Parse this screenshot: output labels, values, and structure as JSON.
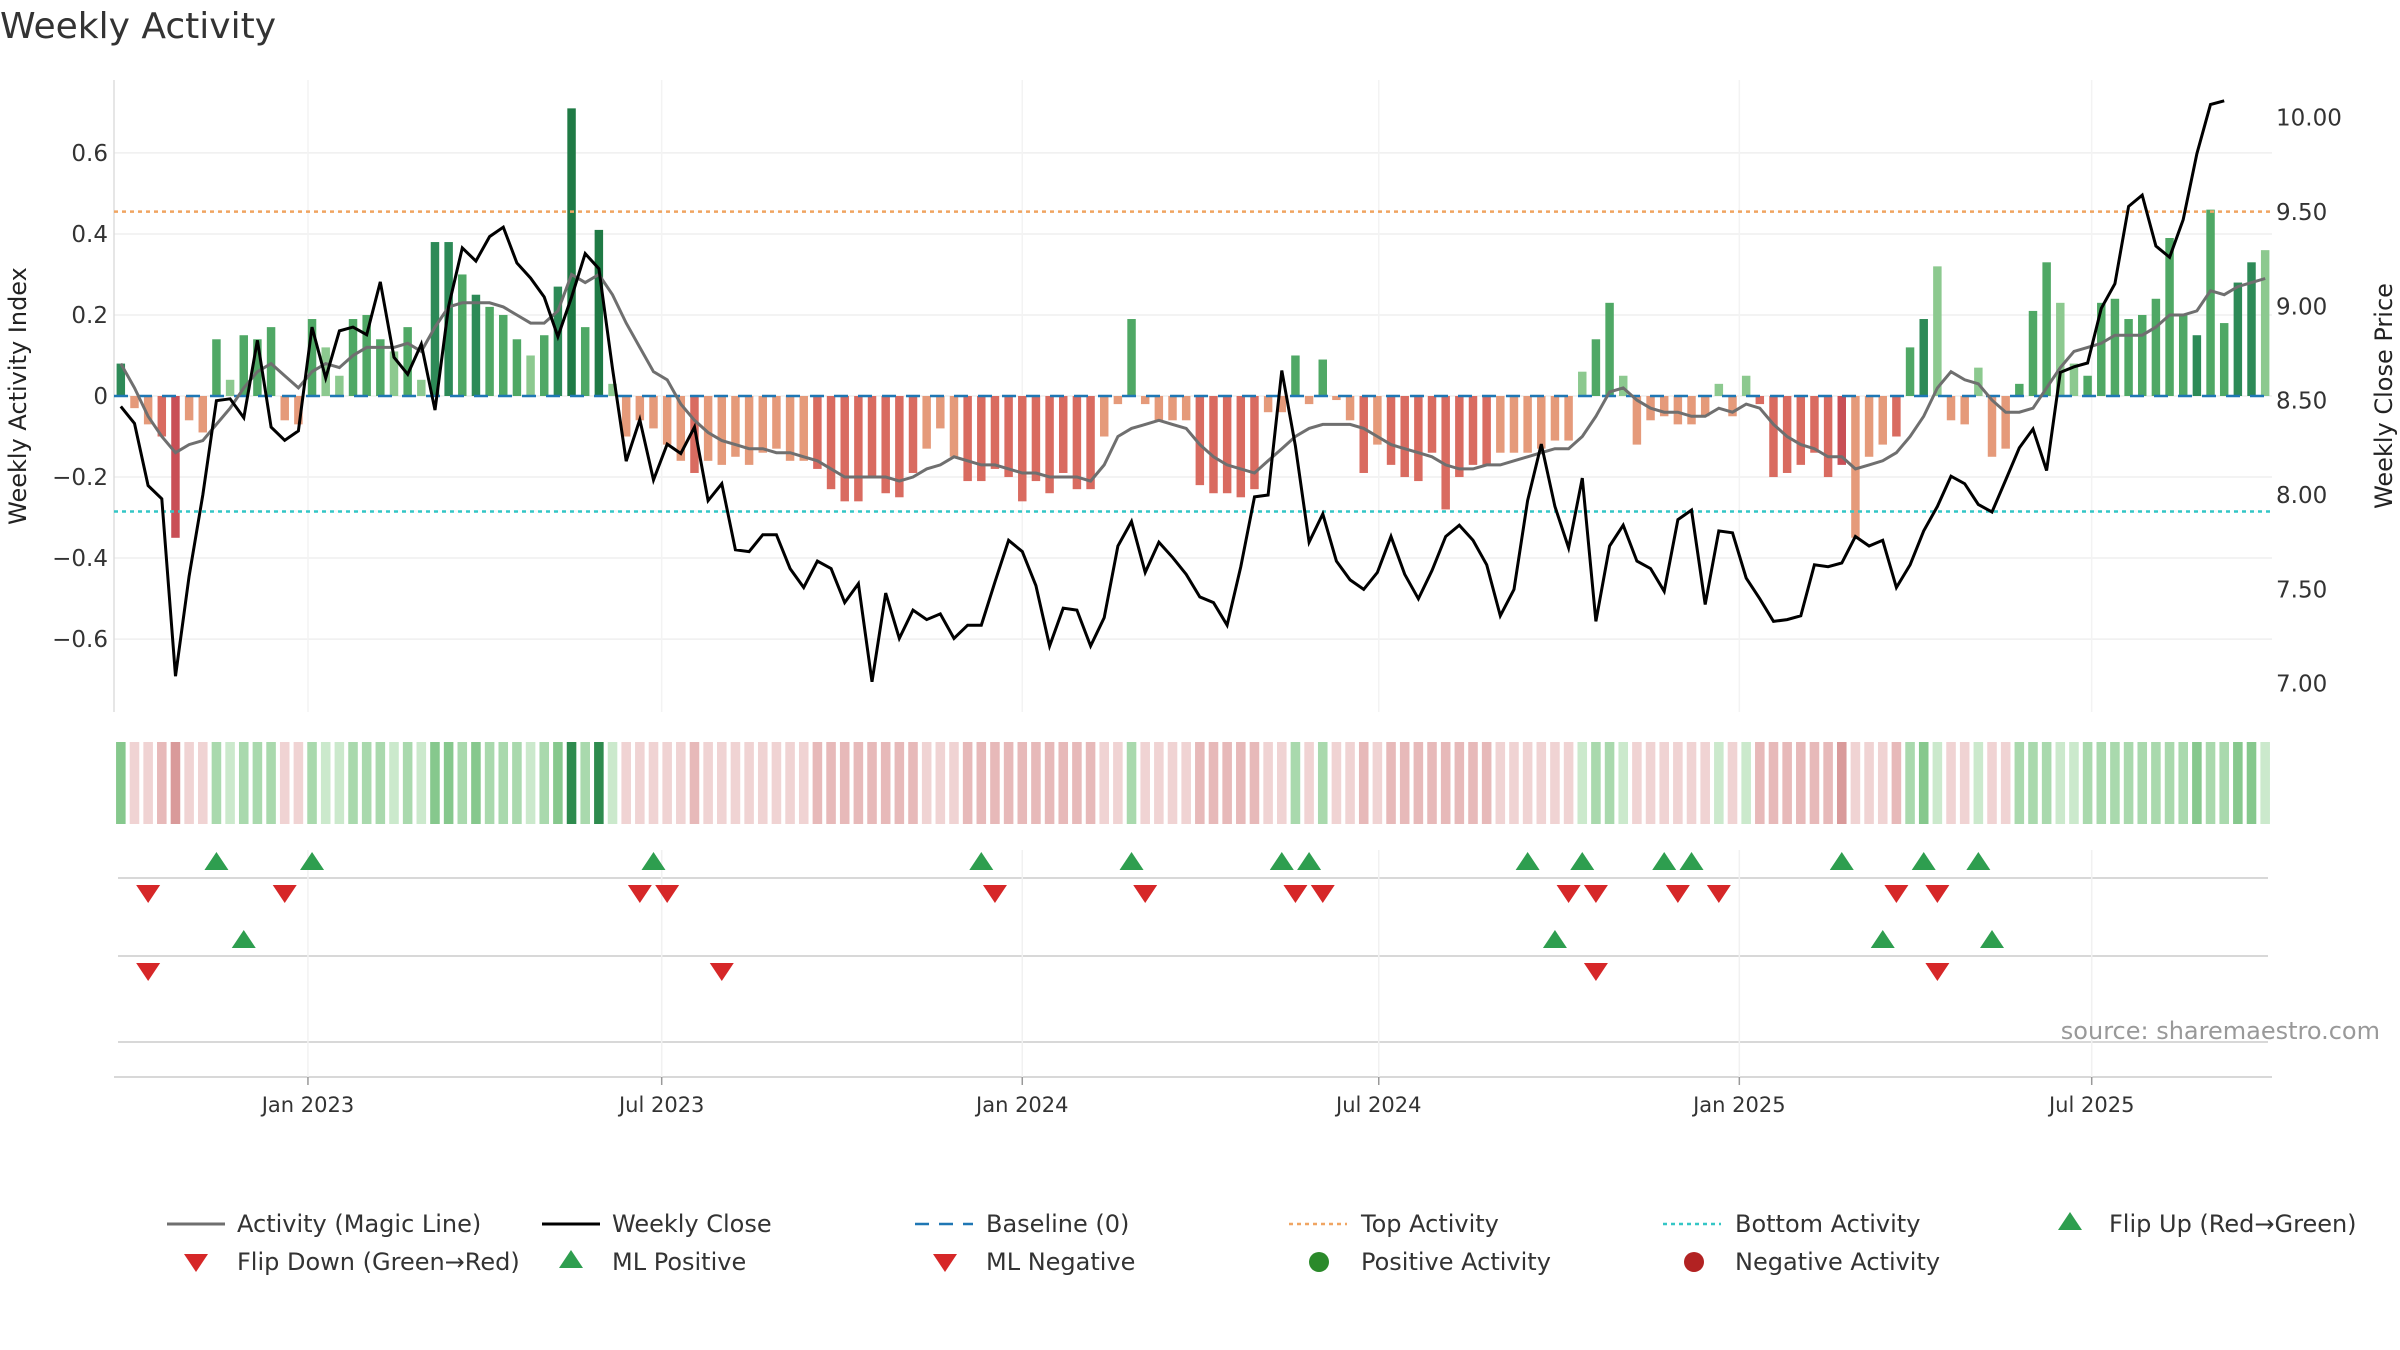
{
  "chart_data": {
    "type": "bar",
    "title": "Weekly Activity",
    "ylabel_left": "Weekly Activity Index",
    "ylabel_right": "Weekly Close Price",
    "ylim_left": [
      -0.78,
      0.78
    ],
    "ylim_right": [
      6.85,
      10.2
    ],
    "left_ticks": [
      0.6,
      0.4,
      0.2,
      0,
      -0.2,
      -0.4,
      -0.6
    ],
    "left_tick_labels": [
      "0.6",
      "0.4",
      "0.2",
      "0",
      "−0.2",
      "−0.4",
      "−0.6"
    ],
    "right_ticks": [
      10.0,
      9.5,
      9.0,
      8.5,
      8.0,
      7.5,
      7.0
    ],
    "right_tick_labels": [
      "10.00",
      "9.50",
      "9.00",
      "8.50",
      "8.00",
      "7.50",
      "7.00"
    ],
    "x_week_range": [
      0,
      158
    ],
    "x_ticks": [
      {
        "label": "Jan 2023",
        "week": 14.2
      },
      {
        "label": "Jul 2023",
        "week": 40.1
      },
      {
        "label": "Jan 2024",
        "week": 66.5
      },
      {
        "label": "Jul 2024",
        "week": 92.6
      },
      {
        "label": "Jan 2025",
        "week": 119
      },
      {
        "label": "Jul 2025",
        "week": 144.8
      }
    ],
    "top_activity": 0.455,
    "bottom_activity": -0.285,
    "baseline": 0,
    "activity": [
      0.08,
      -0.03,
      -0.07,
      -0.1,
      -0.35,
      -0.06,
      -0.09,
      0.14,
      0.04,
      0.15,
      0.14,
      0.17,
      -0.06,
      -0.07,
      0.19,
      0.12,
      0.05,
      0.19,
      0.2,
      0.14,
      0.11,
      0.17,
      0.04,
      0.38,
      0.38,
      0.3,
      0.25,
      0.22,
      0.2,
      0.14,
      0.1,
      0.15,
      0.27,
      0.71,
      0.17,
      0.41,
      0.03,
      -0.1,
      -0.06,
      -0.08,
      -0.12,
      -0.16,
      -0.19,
      -0.16,
      -0.17,
      -0.15,
      -0.17,
      -0.14,
      -0.13,
      -0.16,
      -0.16,
      -0.18,
      -0.23,
      -0.26,
      -0.26,
      -0.2,
      -0.24,
      -0.25,
      -0.19,
      -0.13,
      -0.08,
      -0.15,
      -0.21,
      -0.21,
      -0.18,
      -0.2,
      -0.26,
      -0.21,
      -0.24,
      -0.19,
      -0.23,
      -0.23,
      -0.1,
      -0.02,
      0.19,
      -0.02,
      -0.06,
      -0.06,
      -0.06,
      -0.22,
      -0.24,
      -0.24,
      -0.25,
      -0.23,
      -0.04,
      -0.04,
      0.1,
      -0.02,
      0.09,
      -0.01,
      -0.06,
      -0.19,
      -0.12,
      -0.17,
      -0.2,
      -0.21,
      -0.14,
      -0.28,
      -0.2,
      -0.17,
      -0.17,
      -0.14,
      -0.14,
      -0.14,
      -0.13,
      -0.11,
      -0.11,
      0.06,
      0.14,
      0.23,
      0.05,
      -0.12,
      -0.06,
      -0.05,
      -0.07,
      -0.07,
      -0.05,
      0.03,
      -0.05,
      0.05,
      -0.02,
      -0.2,
      -0.19,
      -0.17,
      -0.14,
      -0.2,
      -0.17,
      -0.35,
      -0.15,
      -0.12,
      -0.1,
      0.12,
      0.19,
      0.32,
      -0.06,
      -0.07,
      0.07,
      -0.15,
      -0.13,
      0.03,
      0.21,
      0.33,
      0.23,
      0.08,
      0.05,
      0.23,
      0.24,
      0.19,
      0.2,
      0.24,
      0.39,
      0.2,
      0.15,
      0.46,
      0.18,
      0.28,
      0.33,
      0.36
    ],
    "activity_strength": [
      3,
      1,
      1,
      2,
      3,
      1,
      1,
      2,
      1,
      2,
      2,
      2,
      1,
      1,
      2,
      1,
      1,
      2,
      2,
      2,
      1,
      2,
      1,
      3,
      3,
      2,
      3,
      2,
      2,
      2,
      1,
      2,
      3,
      4,
      2,
      4,
      1,
      1,
      1,
      1,
      1,
      1,
      2,
      1,
      1,
      1,
      1,
      1,
      1,
      1,
      1,
      2,
      2,
      2,
      2,
      2,
      2,
      2,
      2,
      1,
      1,
      1,
      2,
      2,
      2,
      2,
      2,
      2,
      2,
      2,
      2,
      2,
      1,
      1,
      2,
      1,
      1,
      1,
      1,
      2,
      2,
      2,
      2,
      2,
      1,
      1,
      2,
      1,
      2,
      1,
      1,
      2,
      1,
      2,
      2,
      2,
      2,
      2,
      2,
      2,
      2,
      1,
      1,
      1,
      1,
      1,
      1,
      1,
      2,
      2,
      1,
      1,
      1,
      1,
      1,
      1,
      1,
      1,
      1,
      1,
      2,
      2,
      2,
      2,
      2,
      2,
      3,
      1,
      1,
      1,
      2,
      2,
      3,
      1,
      1,
      1,
      1,
      1,
      1,
      2,
      2,
      2,
      1,
      1,
      2,
      2,
      2,
      2,
      2,
      2,
      2,
      2,
      3,
      2,
      2,
      3,
      3
    ],
    "magic_line": [
      0.08,
      0.02,
      -0.05,
      -0.1,
      -0.14,
      -0.12,
      -0.11,
      -0.07,
      -0.03,
      0.02,
      0.06,
      0.08,
      0.05,
      0.02,
      0.06,
      0.08,
      0.07,
      0.1,
      0.12,
      0.12,
      0.12,
      0.13,
      0.11,
      0.17,
      0.22,
      0.23,
      0.23,
      0.23,
      0.22,
      0.2,
      0.18,
      0.18,
      0.21,
      0.3,
      0.28,
      0.3,
      0.25,
      0.18,
      0.12,
      0.06,
      0.04,
      -0.02,
      -0.06,
      -0.09,
      -0.11,
      -0.12,
      -0.13,
      -0.13,
      -0.14,
      -0.14,
      -0.15,
      -0.16,
      -0.18,
      -0.2,
      -0.2,
      -0.2,
      -0.2,
      -0.21,
      -0.2,
      -0.18,
      -0.17,
      -0.15,
      -0.16,
      -0.17,
      -0.17,
      -0.18,
      -0.19,
      -0.19,
      -0.2,
      -0.2,
      -0.2,
      -0.21,
      -0.17,
      -0.1,
      -0.08,
      -0.07,
      -0.06,
      -0.07,
      -0.08,
      -0.12,
      -0.15,
      -0.17,
      -0.18,
      -0.19,
      -0.16,
      -0.13,
      -0.1,
      -0.08,
      -0.07,
      -0.07,
      -0.07,
      -0.08,
      -0.1,
      -0.12,
      -0.13,
      -0.14,
      -0.15,
      -0.17,
      -0.18,
      -0.18,
      -0.17,
      -0.17,
      -0.16,
      -0.15,
      -0.14,
      -0.13,
      -0.13,
      -0.1,
      -0.05,
      0.01,
      0.02,
      -0.01,
      -0.03,
      -0.04,
      -0.04,
      -0.05,
      -0.05,
      -0.03,
      -0.04,
      -0.02,
      -0.03,
      -0.07,
      -0.1,
      -0.12,
      -0.13,
      -0.15,
      -0.15,
      -0.18,
      -0.17,
      -0.16,
      -0.14,
      -0.1,
      -0.05,
      0.02,
      0.06,
      0.04,
      0.03,
      -0.01,
      -0.04,
      -0.04,
      -0.03,
      0.02,
      0.07,
      0.11,
      0.12,
      0.13,
      0.15,
      0.15,
      0.15,
      0.17,
      0.2,
      0.2,
      0.21,
      0.26,
      0.25,
      0.27,
      0.28,
      0.29
    ],
    "weekly_close": [
      8.47,
      8.38,
      8.05,
      7.98,
      7.04,
      7.57,
      8.0,
      8.5,
      8.51,
      8.41,
      8.82,
      8.36,
      8.29,
      8.34,
      8.89,
      8.62,
      8.87,
      8.89,
      8.85,
      9.13,
      8.73,
      8.64,
      8.8,
      8.45,
      9.0,
      9.31,
      9.24,
      9.37,
      9.42,
      9.23,
      9.15,
      9.05,
      8.84,
      9.05,
      9.28,
      9.2,
      8.67,
      8.18,
      8.4,
      8.08,
      8.27,
      8.22,
      8.36,
      7.97,
      8.06,
      7.71,
      7.7,
      7.79,
      7.79,
      7.61,
      7.51,
      7.65,
      7.61,
      7.43,
      7.53,
      7.01,
      7.48,
      7.24,
      7.39,
      7.34,
      7.37,
      7.24,
      7.31,
      7.31,
      7.54,
      7.76,
      7.7,
      7.52,
      7.2,
      7.4,
      7.39,
      7.2,
      7.35,
      7.73,
      7.86,
      7.59,
      7.75,
      7.67,
      7.58,
      7.46,
      7.43,
      7.31,
      7.62,
      7.99,
      8.0,
      8.66,
      8.26,
      7.75,
      7.9,
      7.65,
      7.55,
      7.5,
      7.59,
      7.78,
      7.58,
      7.45,
      7.6,
      7.78,
      7.84,
      7.76,
      7.63,
      7.36,
      7.5,
      7.97,
      8.27,
      7.94,
      7.72,
      8.09,
      7.33,
      7.73,
      7.84,
      7.65,
      7.61,
      7.49,
      7.87,
      7.92,
      7.42,
      7.81,
      7.8,
      7.56,
      7.45,
      7.33,
      7.34,
      7.36,
      7.63,
      7.62,
      7.64,
      7.78,
      7.73,
      7.76,
      7.51,
      7.63,
      7.81,
      7.94,
      8.1,
      8.06,
      7.95,
      7.91,
      8.08,
      8.25,
      8.35,
      8.13,
      8.65,
      8.68,
      8.7,
      8.99,
      9.12,
      9.53,
      9.59,
      9.32,
      9.26,
      9.46,
      9.81,
      10.07,
      10.09
    ],
    "flip_up_weeks": [
      7,
      14,
      39,
      63,
      74,
      85,
      87,
      103,
      107,
      113,
      115,
      126,
      132,
      136
    ],
    "flip_down_weeks": [
      2,
      12,
      38,
      40,
      64,
      75,
      86,
      88,
      106,
      108,
      114,
      117,
      130,
      133
    ],
    "ml_positive_weeks": [
      9,
      105,
      129,
      137
    ],
    "ml_negative_weeks": [
      2,
      44,
      108,
      133
    ],
    "legend": [
      {
        "label": "Activity (Magic Line)",
        "color": "#6f6f6f"
      },
      {
        "label": "Weekly Close",
        "color": "#000000"
      },
      {
        "label": "Baseline (0)",
        "color": "#1f77b4"
      },
      {
        "label": "Top Activity",
        "color": "#f0a562"
      },
      {
        "label": "Bottom Activity",
        "color": "#34c6c6"
      },
      {
        "label": "Flip Up (Red→Green)",
        "color": "#2e9e4f"
      },
      {
        "label": "Flip Down (Green→Red)",
        "color": "#d62728"
      },
      {
        "label": "ML Positive",
        "color": "#2e9e4f"
      },
      {
        "label": "ML Negative",
        "color": "#d62728"
      },
      {
        "label": "Positive Activity",
        "color": "#2b8a2b"
      },
      {
        "label": "Negative Activity",
        "color": "#b22222"
      }
    ],
    "source": "source: sharemaestro.com"
  },
  "colors": {
    "pos": [
      "#8cc98f",
      "#4fa865",
      "#2d8a57",
      "#1f7a45"
    ],
    "neg": [
      "#e59a7a",
      "#d96b60",
      "#c94f56",
      "#b8404a"
    ],
    "strip_pos": [
      "#cbe9cc",
      "#a9d9ad",
      "#86c88d",
      "#2e8b4e"
    ],
    "strip_neg": [
      "#f0d3d3",
      "#e7b9b9",
      "#d99a9a",
      "#d47b7b"
    ]
  }
}
